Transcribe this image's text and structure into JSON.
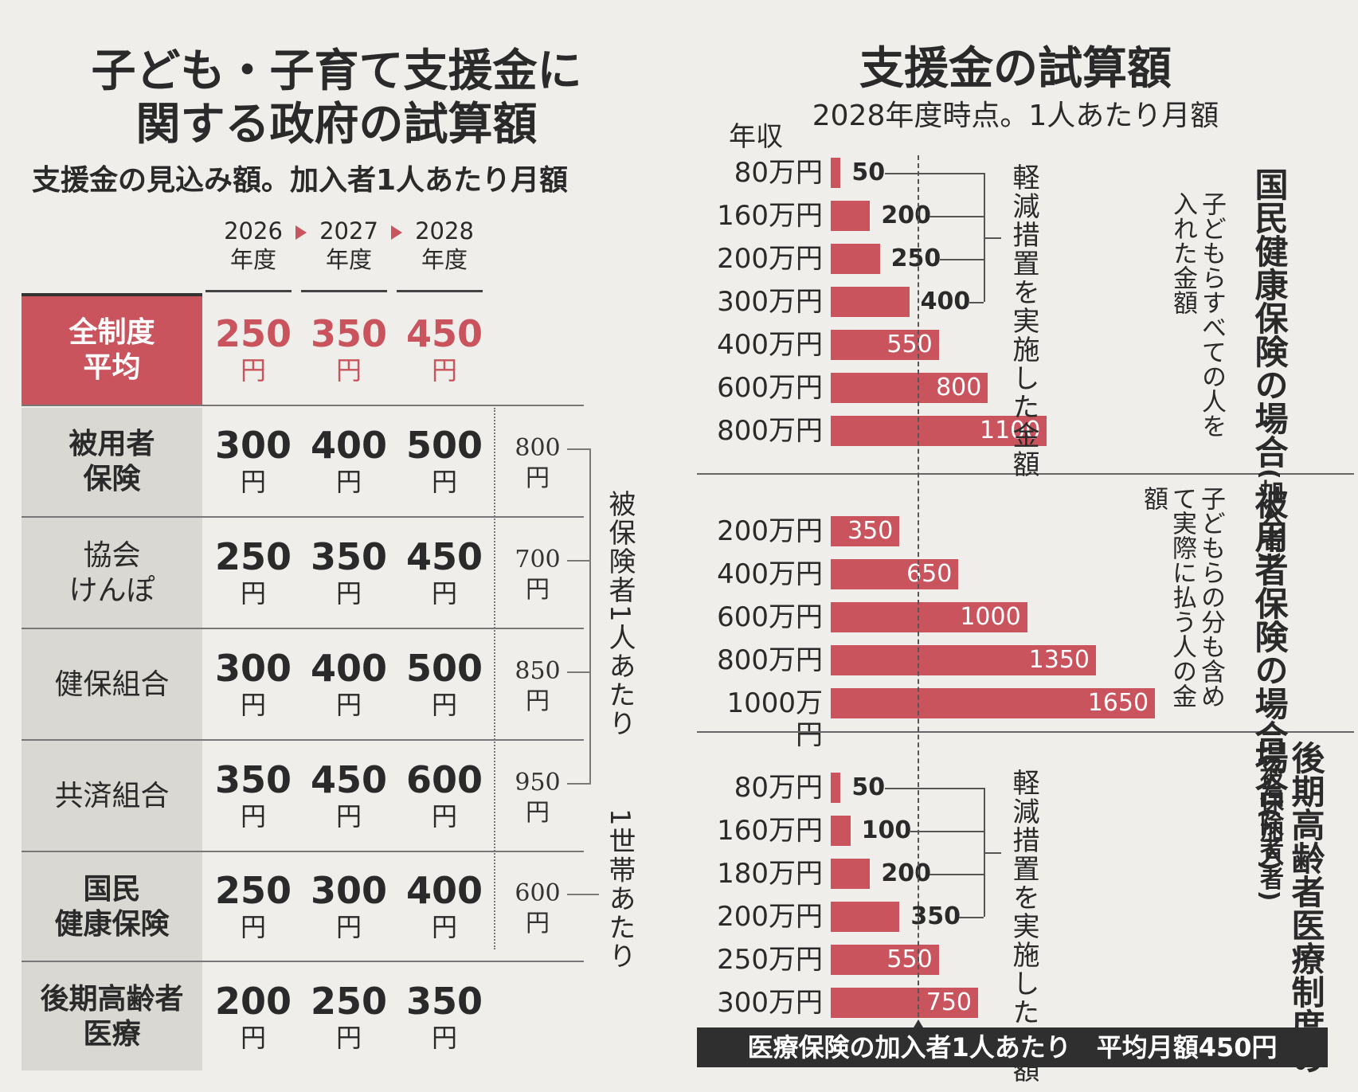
{
  "left_panel": {
    "title_line1": "子ども・子育て支援金に",
    "title_line2": "関する政府の試算額",
    "subtitle": "支援金の見込み額。加入者1人あたり月額",
    "years": [
      {
        "year": "2026",
        "unit": "年度"
      },
      {
        "year": "2027",
        "unit": "年度"
      },
      {
        "year": "2028",
        "unit": "年度"
      }
    ],
    "yen": "円",
    "rows": [
      {
        "label": "全制度\n平均",
        "values": [
          "250",
          "350",
          "450"
        ],
        "highlight": true
      },
      {
        "label": "被用者\n保険",
        "values": [
          "300",
          "400",
          "500"
        ],
        "right_value": "800"
      },
      {
        "label": "協会\nけんぽ",
        "values": [
          "250",
          "350",
          "450"
        ],
        "right_value": "700"
      },
      {
        "label": "健保組合",
        "values": [
          "300",
          "400",
          "500"
        ],
        "right_value": "850"
      },
      {
        "label": "共済組合",
        "values": [
          "350",
          "450",
          "600"
        ],
        "right_value": "950"
      },
      {
        "label": "国民\n健康保険",
        "values": [
          "250",
          "300",
          "400"
        ],
        "right_value": "600"
      },
      {
        "label": "後期高齢者\n医療",
        "values": [
          "200",
          "250",
          "350"
        ]
      }
    ],
    "note_insured": "被保険者1人あたり",
    "note_household": "1世帯あたり"
  },
  "right_panel": {
    "title": "支援金の試算額",
    "subtitle": "2028年度時点。1人あたり月額",
    "income_header": "年収",
    "footer": "医療保険の加入者1人あたり　平均月額450円",
    "reduced_note": "軽減措置を実施した金額",
    "sections": [
      {
        "title": "国民健康保険の場合",
        "title_suffix": "(加入者)",
        "note": "子どもらすべての人を入れた金額"
      },
      {
        "title": "被用者保険の場合",
        "title_suffix": "(被保険者)",
        "note": "子どもらの分も含めて実際に払う人の金額"
      },
      {
        "title": "後期高齢者医療制度の場合",
        "title_suffix": "(加入者)",
        "note": ""
      }
    ]
  },
  "colors": {
    "accent": "#c9545e",
    "highlight_text": "#ffffff",
    "background": "#efeeea",
    "shade": "#d9d8d3",
    "footer_bg": "#2f2f2f"
  },
  "chart_data": [
    {
      "type": "bar",
      "orientation": "horizontal",
      "title": "国民健康保険の場合(加入者)",
      "categories": [
        "80万円",
        "160万円",
        "200万円",
        "300万円",
        "400万円",
        "600万円",
        "800万円"
      ],
      "values": [
        50,
        200,
        250,
        400,
        550,
        800,
        1100
      ],
      "reference_line": 450,
      "reduced_count": 4
    },
    {
      "type": "bar",
      "orientation": "horizontal",
      "title": "被用者保険の場合(被保険者)",
      "categories": [
        "200万円",
        "400万円",
        "600万円",
        "800万円",
        "1000万円"
      ],
      "values": [
        350,
        650,
        1000,
        1350,
        1650
      ],
      "reference_line": 450,
      "reduced_count": 0
    },
    {
      "type": "bar",
      "orientation": "horizontal",
      "title": "後期高齢者医療制度の場合(加入者)",
      "categories": [
        "80万円",
        "160万円",
        "180万円",
        "200万円",
        "250万円",
        "300万円"
      ],
      "values": [
        50,
        100,
        200,
        350,
        550,
        750
      ],
      "reference_line": 450,
      "reduced_count": 4
    }
  ]
}
